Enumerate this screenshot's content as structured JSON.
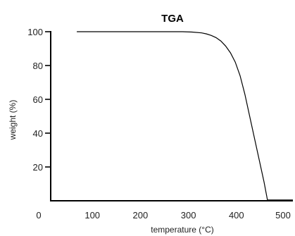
{
  "chart_data": {
    "type": "line",
    "title": "TGA",
    "xlabel": "temperature (°C)",
    "ylabel": "weight (%)",
    "xlim": [
      0,
      500
    ],
    "ylim": [
      0,
      100
    ],
    "x_ticks": [
      "0",
      "100",
      "200",
      "300",
      "400",
      "500"
    ],
    "y_ticks": [
      "20",
      "40",
      "60",
      "80",
      "100"
    ],
    "grid": false,
    "series": [
      {
        "x": [
          50,
          100,
          150,
          200,
          250,
          270,
          290,
          310,
          320,
          330,
          340,
          350,
          360,
          370,
          380,
          390,
          400,
          410,
          420,
          430,
          440,
          447,
          450,
          500
        ],
        "y": [
          100,
          100,
          100,
          100,
          100,
          100,
          99.8,
          99.3,
          98.7,
          97.8,
          96.5,
          94.5,
          91.5,
          87.5,
          82,
          74,
          63,
          50,
          37,
          24,
          11,
          0.5,
          0.5,
          0.5
        ]
      }
    ]
  }
}
